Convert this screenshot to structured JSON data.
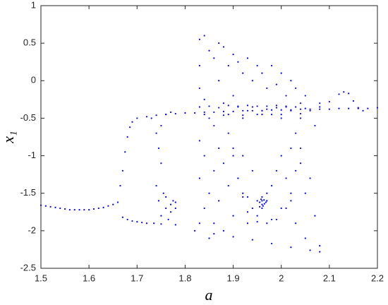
{
  "chart_data": {
    "type": "scatter",
    "xlabel": "a",
    "ylabel": "x₁",
    "color": "#0000ff",
    "xlim": [
      1.5,
      2.2
    ],
    "xticks": [
      1.5,
      1.6,
      1.7,
      1.8,
      1.9,
      2,
      2.1,
      2.2
    ],
    "ylim": [
      -2.5,
      1
    ],
    "yticks": [
      -2.5,
      -2,
      -1.5,
      -1,
      -0.5,
      0,
      0.5,
      1
    ],
    "grid": false,
    "x": [
      1.5,
      1.51,
      1.52,
      1.53,
      1.54,
      1.55,
      1.56,
      1.57,
      1.58,
      1.59,
      1.6,
      1.61,
      1.62,
      1.63,
      1.64,
      1.65,
      1.66,
      1.665,
      1.67,
      1.675,
      1.68,
      1.685,
      1.69,
      1.7,
      1.72,
      1.74,
      1.76,
      1.78,
      1.8,
      1.82,
      1.84,
      1.86,
      1.88,
      1.9,
      1.92,
      1.94,
      1.96,
      1.98,
      2,
      2.02,
      2.04,
      2.06,
      2.08,
      2.1,
      2.12,
      2.14,
      2.16,
      2.18,
      2.2,
      1.67,
      1.68,
      1.69,
      1.7,
      1.71,
      1.72,
      1.75,
      1.78,
      1.82,
      1.86,
      1.9,
      1.94,
      1.98,
      2.02,
      2.06,
      2.08,
      2.08,
      2.1,
      2.12,
      2.13,
      2.14,
      2.15,
      2.16,
      2.17,
      1.73,
      1.74,
      1.745,
      1.75,
      1.74,
      1.745,
      1.75,
      1.76,
      1.77,
      1.78,
      1.76,
      1.77,
      1.75,
      1.755,
      1.765,
      1.775,
      1.735,
      1.77,
      1.78,
      1.76,
      1.83,
      1.83,
      1.83,
      1.83,
      1.83,
      1.83,
      1.84,
      1.84,
      1.84,
      1.84,
      1.85,
      1.85,
      1.85,
      1.85,
      1.86,
      1.86,
      1.86,
      1.86,
      1.87,
      1.87,
      1.87,
      1.87,
      1.88,
      1.88,
      1.88,
      1.88,
      1.89,
      1.89,
      1.89,
      1.9,
      1.9,
      1.9,
      1.9,
      1.91,
      1.91,
      1.91,
      1.92,
      1.92,
      1.92,
      1.92,
      1.93,
      1.93,
      1.93,
      1.93,
      1.94,
      1.94,
      1.94,
      1.94,
      1.95,
      1.95,
      1.95,
      1.95,
      1.96,
      1.96,
      1.96,
      1.96,
      1.96,
      1.97,
      1.97,
      1.97,
      1.97,
      1.98,
      1.98,
      1.98,
      1.98,
      1.99,
      1.99,
      1.99,
      2,
      2,
      2,
      2,
      2.01,
      2.01,
      2.01,
      2.02,
      2.02,
      2.02,
      2.02,
      2.03,
      2.03,
      2.03,
      2.04,
      2.04,
      2.04,
      2.05,
      2.05,
      2.05,
      2.06,
      2.06,
      2.07,
      2.07,
      2.08,
      2.08,
      1.91,
      1.92,
      1.93,
      1.95,
      1.97,
      1.99,
      2.01,
      2.02,
      2.03,
      2.04,
      1.9,
      1.89,
      1.955,
      1.96,
      1.965,
      1.962,
      1.958,
      1.968,
      1.964,
      1.955,
      1.83,
      1.85,
      1.87,
      1.89,
      1.91,
      1.93,
      1.95,
      1.97,
      1.99,
      2.01,
      2.03,
      2.05,
      1.84,
      1.88,
      1.92,
      1.96,
      2,
      2.04
    ],
    "values": [
      -1.66,
      -1.67,
      -1.68,
      -1.69,
      -1.7,
      -1.71,
      -1.72,
      -1.72,
      -1.72,
      -1.72,
      -1.72,
      -1.71,
      -1.7,
      -1.69,
      -1.67,
      -1.65,
      -1.62,
      -1.4,
      -1.2,
      -0.95,
      -0.75,
      -0.62,
      -0.55,
      -0.5,
      -0.48,
      -0.46,
      -0.45,
      -0.44,
      -0.43,
      -0.43,
      -0.42,
      -0.42,
      -0.41,
      -0.41,
      -0.4,
      -0.4,
      -0.4,
      -0.39,
      -0.39,
      -0.39,
      -0.38,
      -0.38,
      -0.38,
      -0.38,
      -0.37,
      -0.37,
      -0.37,
      -0.37,
      -0.36,
      -1.82,
      -1.85,
      -1.87,
      -1.88,
      -1.89,
      -1.9,
      -1.91,
      -1.92,
      -2,
      -2.04,
      -2.08,
      -2.12,
      -2.17,
      -2.22,
      -2.26,
      -2.28,
      -0.35,
      -0.28,
      -0.18,
      -0.15,
      -0.17,
      -0.27,
      -0.36,
      -0.4,
      -0.5,
      -0.7,
      -0.9,
      -1.1,
      -1.4,
      -1.6,
      -1.8,
      -1.7,
      -1.65,
      -1.7,
      -0.45,
      -0.42,
      -0.6,
      -1.5,
      -1.85,
      -1.6,
      -1.9,
      -1.75,
      -1.62,
      -1.55,
      0.55,
      0.2,
      -0.1,
      -0.8,
      -1.3,
      -1.9,
      0.6,
      -0.25,
      -1,
      -1.7,
      0.4,
      -0.5,
      -1.5,
      -2.1,
      0.3,
      -0.6,
      -1.2,
      -1.9,
      0.5,
      0,
      -0.9,
      -1.6,
      0.45,
      -0.3,
      -1.1,
      -2,
      0.2,
      -0.45,
      -1.4,
      0.35,
      -0.2,
      -0.9,
      -1.8,
      0.25,
      -0.35,
      -1.3,
      0.1,
      -0.5,
      -1,
      -1.5,
      0.3,
      -0.4,
      -1.55,
      -1.9,
      0,
      -0.35,
      -1.2,
      -1.7,
      0.2,
      -0.45,
      -1.6,
      -1.8,
      0.1,
      -0.4,
      -1.65,
      -1.55,
      -1.7,
      -0.1,
      -0.38,
      -1.6,
      -1.5,
      0.2,
      -0.45,
      -1.4,
      -1.85,
      -0.05,
      -0.36,
      -1.2,
      0.1,
      -0.5,
      -1,
      -1.7,
      -0.2,
      -0.35,
      -1.3,
      0,
      -0.4,
      -0.9,
      -1.6,
      -0.1,
      -0.7,
      -1.9,
      -0.3,
      -0.5,
      -1.1,
      -0.2,
      -1.5,
      -2.1,
      -0.4,
      -1.3,
      -0.6,
      -1.8,
      -0.3,
      -2.2,
      -1.3,
      -1.55,
      -1.75,
      -1.88,
      -1.9,
      -1.85,
      -1.7,
      -1.5,
      -1.2,
      -0.9,
      -1,
      -0.7,
      -1.62,
      -1.6,
      -1.64,
      -1.67,
      -1.58,
      -1.62,
      -1.59,
      -1.68,
      -0.35,
      -0.34,
      -0.36,
      -0.33,
      -0.34,
      -0.33,
      -0.34,
      -0.34,
      -0.33,
      -0.34,
      -0.35,
      -0.37,
      -0.45,
      -0.46,
      -0.46,
      -0.45,
      -0.45,
      -0.44
    ]
  }
}
